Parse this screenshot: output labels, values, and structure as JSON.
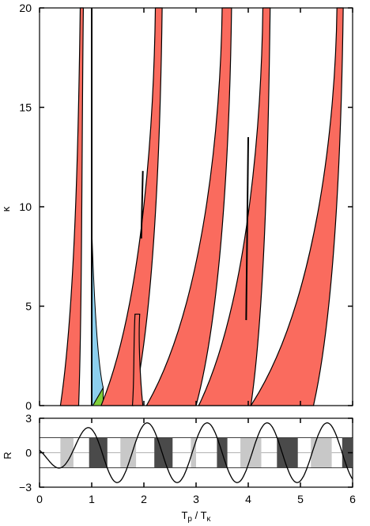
{
  "chart_data": [
    {
      "type": "area",
      "panel": "top",
      "xlim": [
        0,
        6
      ],
      "ylim": [
        0,
        20
      ],
      "ylabel": "κ",
      "xticks": [
        0,
        1,
        2,
        3,
        4,
        5,
        6
      ],
      "yticks": [
        0,
        5,
        10,
        15,
        20
      ],
      "grid": false,
      "colors": {
        "region": "#fa6b5e",
        "outline": "#000000",
        "wedge": "#8ccfee",
        "corner": "#7fcf3a"
      },
      "bands": [
        {
          "name": "band-1",
          "x_bottom": [
            0.4,
            0.75
          ],
          "x_top": [
            0.78,
            0.84
          ]
        },
        {
          "name": "band-2",
          "x_bottom": [
            1.18,
            1.8
          ],
          "x_top": [
            2.22,
            2.35
          ]
        },
        {
          "name": "band-3",
          "x_bottom": [
            1.78,
            1.98
          ],
          "x_top": [
            1.83,
            1.92
          ],
          "kappa_top": 4.6
        },
        {
          "name": "band-4",
          "x_bottom": [
            2.05,
            3.0
          ],
          "x_top": [
            3.5,
            3.68
          ]
        },
        {
          "name": "band-5",
          "x_bottom": [
            3.05,
            4.05
          ],
          "x_top": [
            4.28,
            4.42
          ]
        },
        {
          "name": "band-6",
          "x_bottom": [
            4.05,
            5.25
          ],
          "x_top": [
            5.7,
            5.82
          ]
        }
      ],
      "dark_lines": [
        {
          "x": [
            1.0,
            1.0
          ],
          "y": [
            0,
            20
          ]
        },
        {
          "x": [
            1.95,
            1.98
          ],
          "y": [
            8.4,
            11.8
          ]
        },
        {
          "x": [
            3.96,
            4.0
          ],
          "y": [
            4.3,
            13.5
          ]
        }
      ]
    },
    {
      "type": "line",
      "panel": "bottom",
      "xlim": [
        0,
        6
      ],
      "ylim": [
        -3,
        3
      ],
      "xlabel": "Tp / Tκ",
      "ylabel": "R",
      "xticks": [
        0,
        1,
        2,
        3,
        4,
        5,
        6
      ],
      "yticks": [
        -3,
        0,
        3
      ],
      "series": [
        {
          "description": "damped-growing oscillation",
          "amplitude_max": 2.6
        }
      ],
      "bars": [
        {
          "x0": 0.4,
          "x1": 0.65,
          "shade": "light"
        },
        {
          "x0": 0.95,
          "x1": 1.3,
          "shade": "dark"
        },
        {
          "x0": 1.55,
          "x1": 1.85,
          "shade": "light"
        },
        {
          "x0": 2.2,
          "x1": 2.55,
          "shade": "dark"
        },
        {
          "x0": 2.9,
          "x1": 3.0,
          "shade": "light"
        },
        {
          "x0": 3.4,
          "x1": 3.6,
          "shade": "dark"
        },
        {
          "x0": 3.85,
          "x1": 4.25,
          "shade": "light"
        },
        {
          "x0": 4.55,
          "x1": 4.95,
          "shade": "dark"
        },
        {
          "x0": 5.2,
          "x1": 5.6,
          "shade": "light"
        },
        {
          "x0": 5.8,
          "x1": 6.0,
          "shade": "dark"
        }
      ]
    }
  ],
  "labels": {
    "top_ylabel": "κ",
    "bottom_ylabel": "R",
    "xlabel_main": "T",
    "xlabel_sub1": "p",
    "xlabel_sep": " / T",
    "xlabel_sub2": "κ",
    "xtick_labels": [
      "0",
      "1",
      "2",
      "3",
      "4",
      "5",
      "6"
    ],
    "top_ytick_labels": [
      "0",
      "5",
      "10",
      "15",
      "20"
    ],
    "bottom_ytick_labels": [
      "−3",
      "0",
      "3"
    ]
  }
}
